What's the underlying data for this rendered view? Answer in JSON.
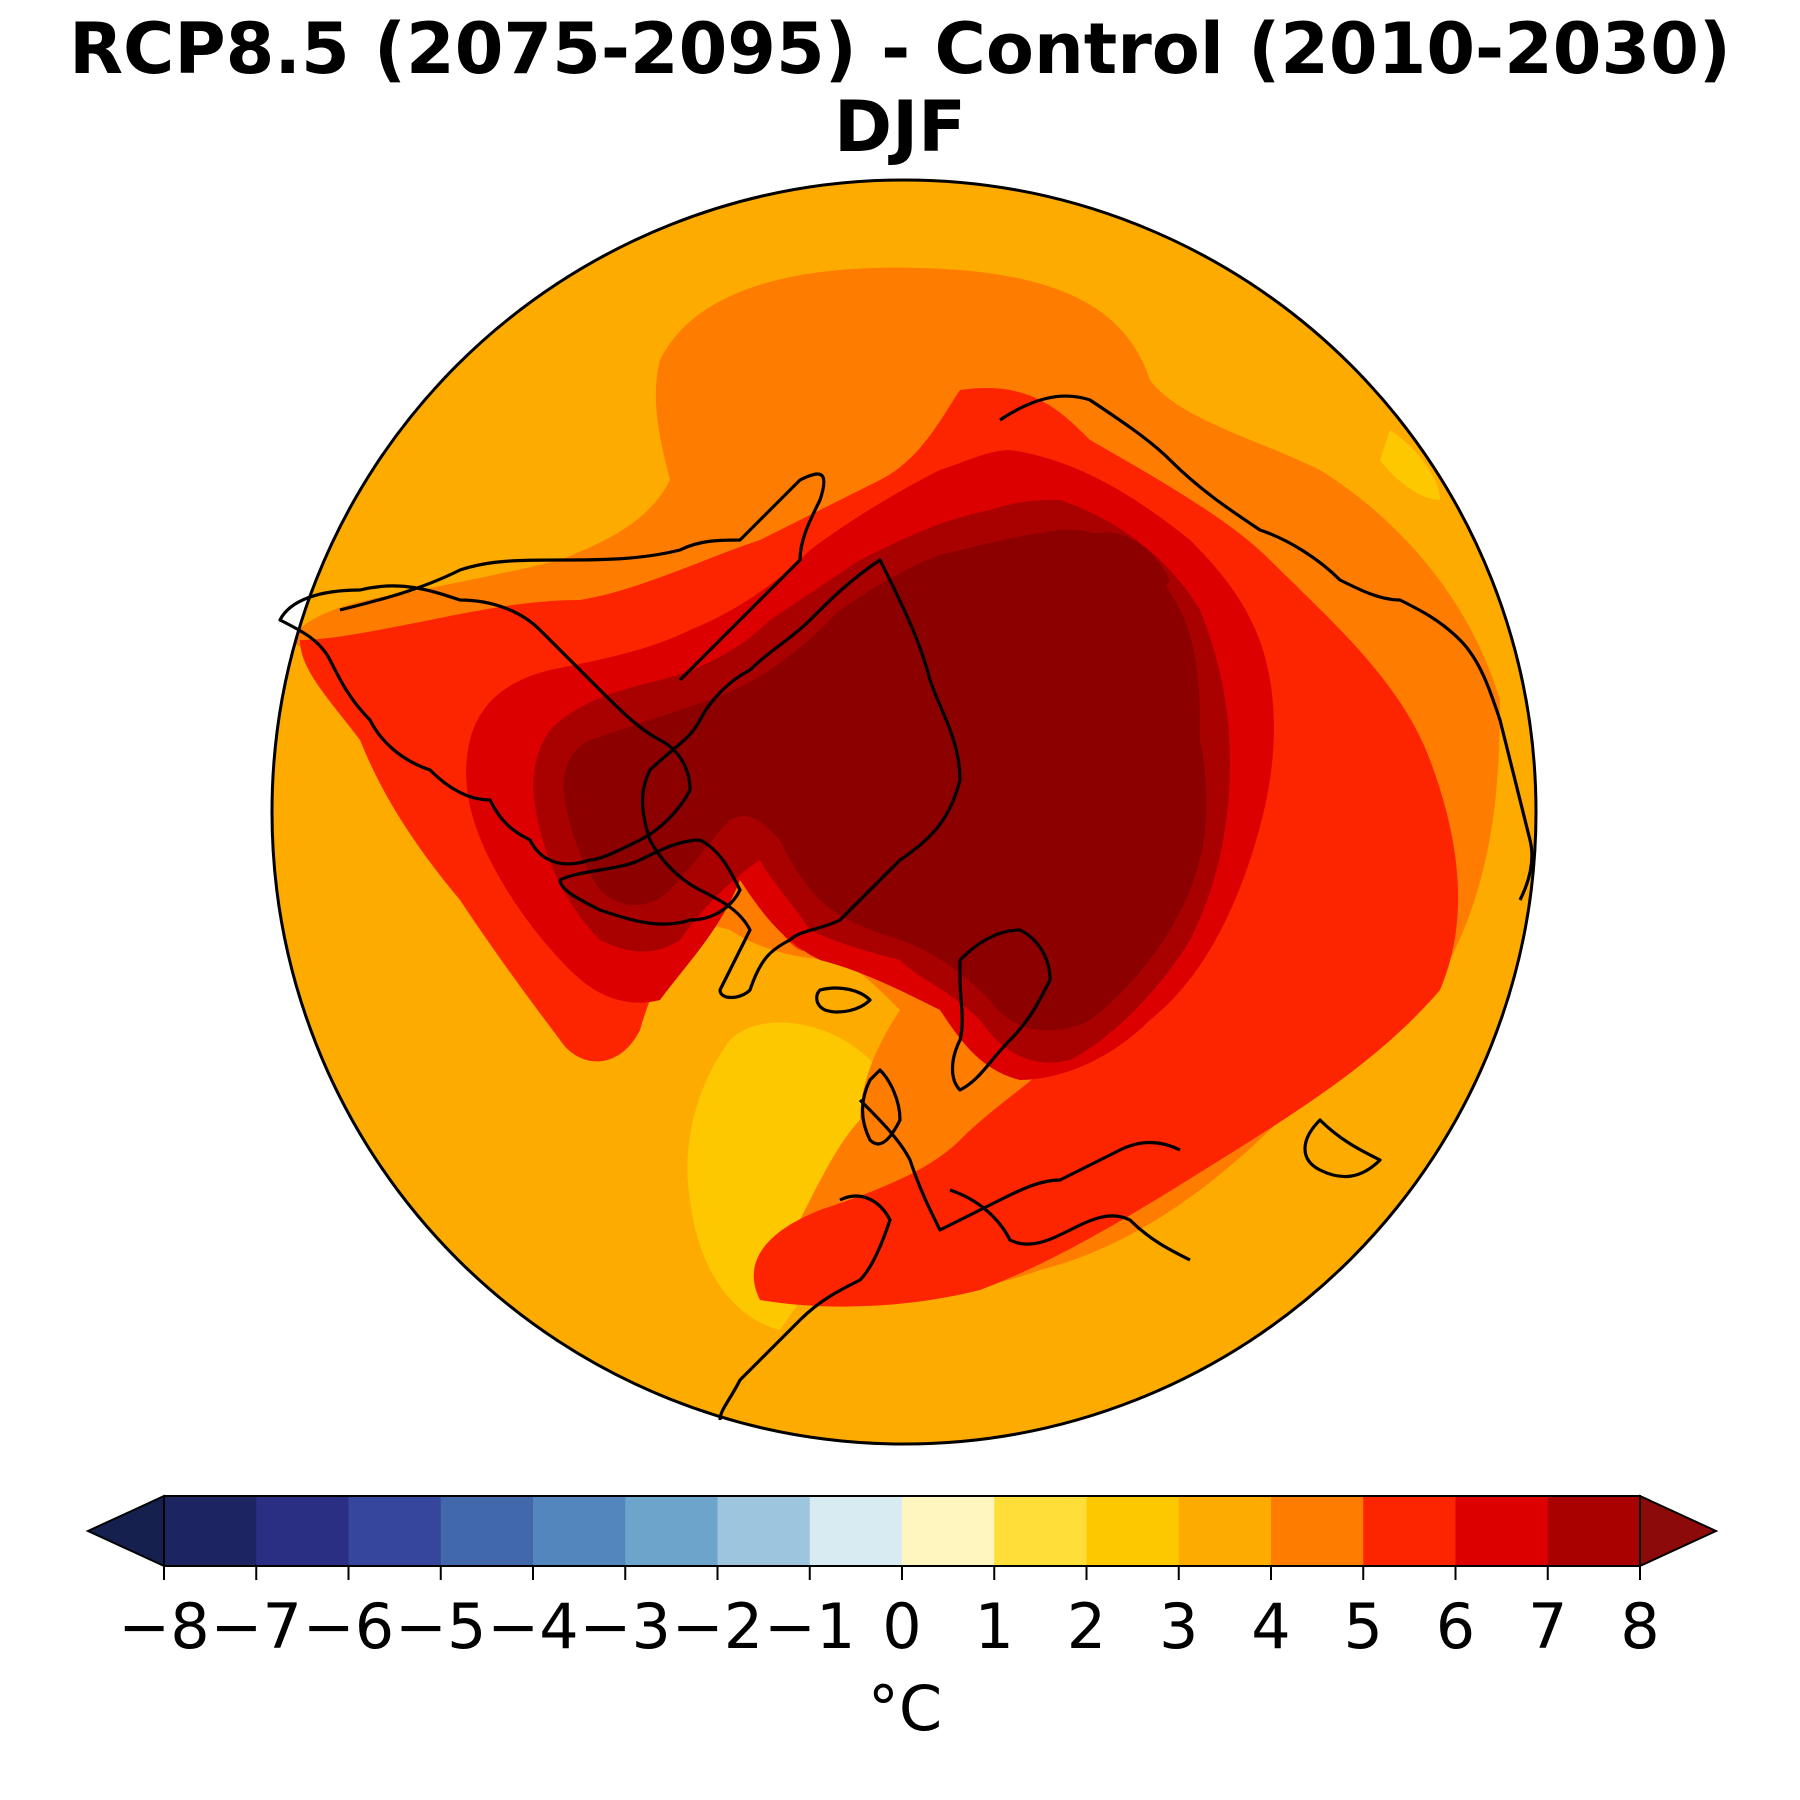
{
  "figure": {
    "title_line1": "RCP8.5 (2075-2095) - Control (2010-2030)",
    "title_line2": "DJF"
  },
  "colorbar": {
    "unit": "°C",
    "tick_labels": [
      "−8",
      "−7",
      "−6",
      "−5",
      "−4",
      "−3",
      "−2",
      "−1",
      "0",
      "1",
      "2",
      "3",
      "4",
      "5",
      "6",
      "7",
      "8"
    ],
    "levels": [
      -8,
      -7,
      -6,
      -5,
      -4,
      -3,
      -2,
      -1,
      0,
      1,
      2,
      3,
      4,
      5,
      6,
      7,
      8
    ],
    "extend": "both",
    "under_color": "#16204e",
    "over_color": "#8c0a0a",
    "colors": [
      "#1c2462",
      "#2a2f84",
      "#35469c",
      "#4268ac",
      "#5286bd",
      "#6ca4cb",
      "#9dc5de",
      "#d9ebf2",
      "#fff5be",
      "#ffde3a",
      "#fdc800",
      "#feab00",
      "#fe7c00",
      "#fd2400",
      "#dc0000",
      "#a90000"
    ]
  },
  "map": {
    "projection": "north-polar-stereographic",
    "region_colors": {
      "ocean_base": "#feab00",
      "band_4_5": "#fe7c00",
      "band_5_6": "#fd2400",
      "band_6_7": "#dc0000",
      "band_7_8": "#a90000",
      "over_8": "#8c0000",
      "band_2_3": "#fdc800"
    }
  }
}
